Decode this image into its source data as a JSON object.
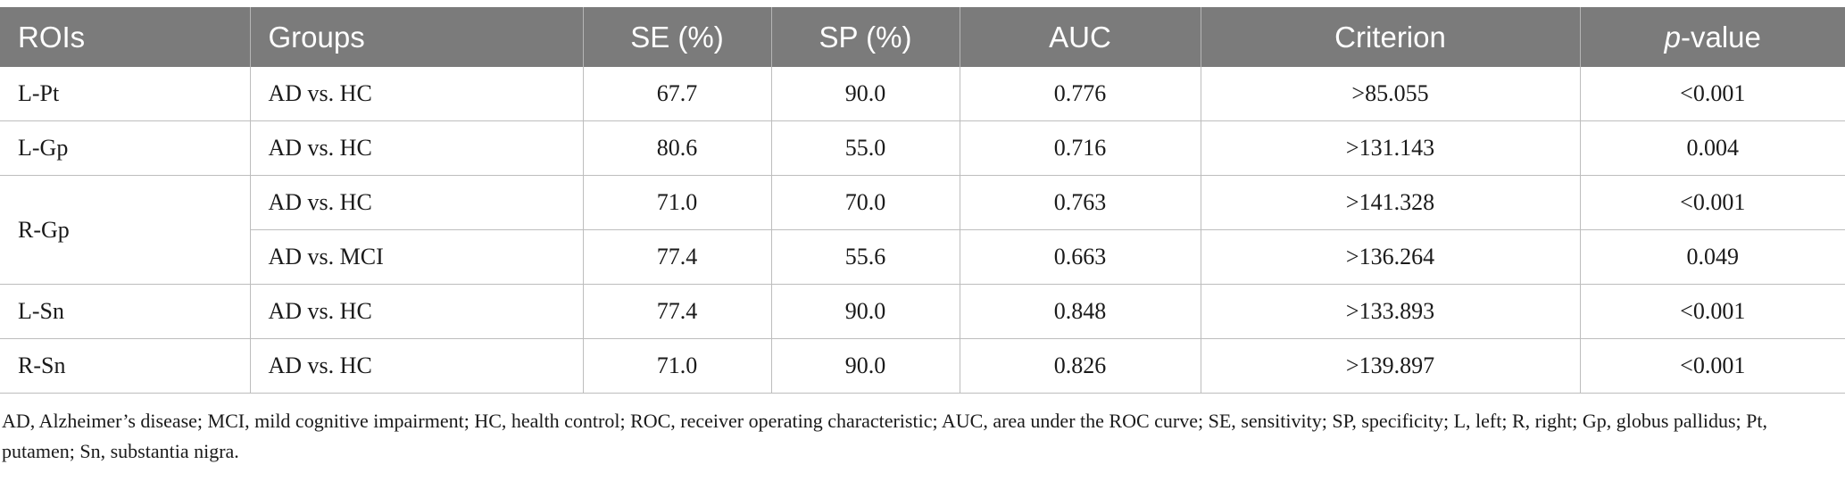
{
  "table": {
    "headers": {
      "roi": "ROIs",
      "groups": "Groups",
      "se": "SE (%)",
      "sp": "SP (%)",
      "auc": "AUC",
      "criterion": "Criterion",
      "p_prefix": "p",
      "p_suffix": "-value"
    },
    "rows": [
      {
        "roi": "L-Pt",
        "groups": "AD vs. HC",
        "se": "67.7",
        "sp": "90.0",
        "auc": "0.776",
        "criterion": ">85.055",
        "p": "<0.001"
      },
      {
        "roi": "L-Gp",
        "groups": "AD vs. HC",
        "se": "80.6",
        "sp": "55.0",
        "auc": "0.716",
        "criterion": ">131.143",
        "p": "0.004"
      },
      {
        "roi": "R-Gp",
        "groups": "AD vs. HC",
        "se": "71.0",
        "sp": "70.0",
        "auc": "0.763",
        "criterion": ">141.328",
        "p": "<0.001"
      },
      {
        "roi": "",
        "groups": "AD vs. MCI",
        "se": "77.4",
        "sp": "55.6",
        "auc": "0.663",
        "criterion": ">136.264",
        "p": "0.049"
      },
      {
        "roi": "L-Sn",
        "groups": "AD vs. HC",
        "se": "77.4",
        "sp": "90.0",
        "auc": "0.848",
        "criterion": ">133.893",
        "p": "<0.001"
      },
      {
        "roi": "R-Sn",
        "groups": "AD vs. HC",
        "se": "71.0",
        "sp": "90.0",
        "auc": "0.826",
        "criterion": ">139.897",
        "p": "<0.001"
      }
    ]
  },
  "footnote": "AD, Alzheimer’s disease; MCI, mild cognitive impairment; HC, health control; ROC, receiver operating characteristic; AUC, area under the ROC curve; SE, sensitivity; SP, specificity; L, left; R, right; Gp, globus pallidus; Pt, putamen; Sn, substantia nigra."
}
